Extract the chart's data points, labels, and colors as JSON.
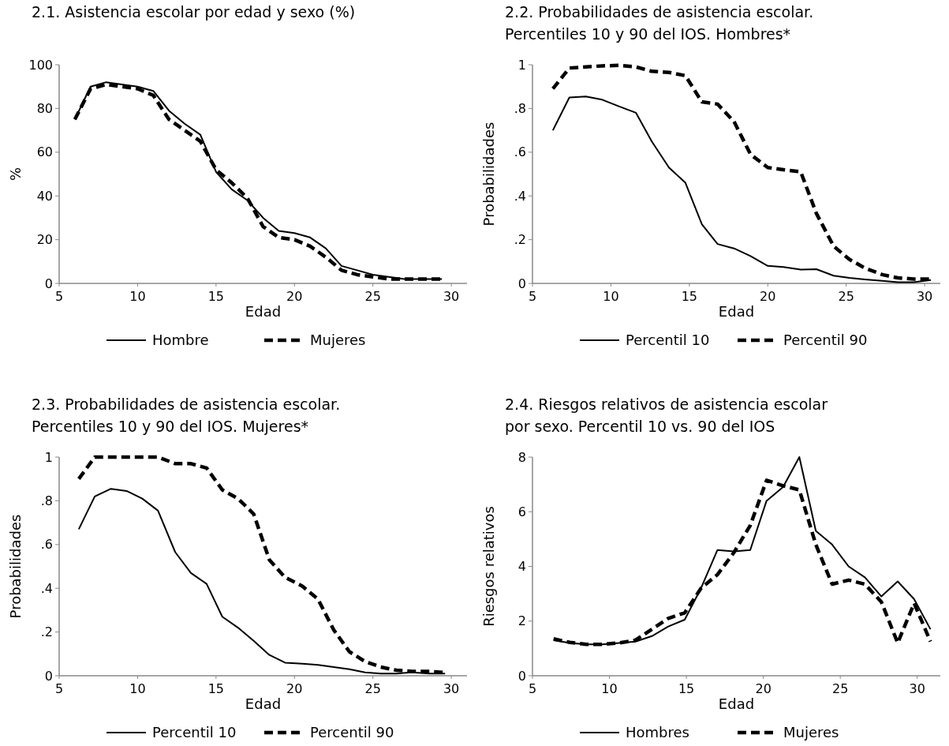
{
  "chart_data": [
    {
      "type": "line",
      "title": "2.1. Asistencia escolar por edad y sexo (%)",
      "xlabel": "Edad",
      "ylabel": "%",
      "x": [
        6,
        7,
        8,
        9,
        10,
        11,
        12,
        13,
        14,
        15,
        16,
        17,
        18,
        19,
        20,
        21,
        22,
        23,
        24,
        25,
        26,
        27,
        28,
        29.4
      ],
      "xlim": [
        5,
        31
      ],
      "xticks": [
        5,
        10,
        15,
        20,
        25,
        30
      ],
      "ylim": [
        0,
        100
      ],
      "yticks": [
        0,
        20,
        40,
        60,
        80,
        100
      ],
      "grid": false,
      "legend": "bottom",
      "series": [
        {
          "name": "Hombre",
          "color": "#000000",
          "line_style": "solid",
          "values": [
            75,
            90,
            92,
            91,
            90,
            88,
            79,
            73,
            68,
            51,
            43,
            38,
            30,
            24,
            23,
            21,
            16,
            8,
            6,
            4,
            3,
            2,
            2,
            2
          ]
        },
        {
          "name": "Mujeres",
          "color": "#000000",
          "line_style": "dashed",
          "values": [
            75,
            89,
            91,
            90,
            89,
            86,
            75,
            70,
            65,
            52,
            46,
            39,
            26,
            21,
            20,
            17,
            12,
            6,
            4,
            3,
            2,
            2,
            2,
            2
          ]
        }
      ]
    },
    {
      "type": "line",
      "title": "2.2. Probabilidades de asistencia escolar. Percentiles 10 y 90 del IOS. Hombres*",
      "xlabel": "Edad",
      "ylabel": "Probabilidades",
      "x": [
        6.3,
        7.35,
        8.4,
        9.45,
        10.5,
        11.6,
        12.6,
        13.7,
        14.75,
        15.8,
        16.8,
        17.85,
        18.9,
        20,
        21,
        22.1,
        23.1,
        24.2,
        25.2,
        26.2,
        27.3,
        28.3,
        29.3,
        30.4
      ],
      "xlim": [
        5,
        31
      ],
      "xticks": [
        5,
        10,
        15,
        20,
        25,
        30
      ],
      "ylim": [
        0,
        1
      ],
      "yticks": [
        0,
        {
          "value": 0.2,
          "label": ".2"
        },
        {
          "value": 0.4,
          "label": ".4"
        },
        {
          "value": 0.6,
          "label": ".6"
        },
        {
          "value": 0.8,
          "label": ".8"
        },
        1
      ],
      "grid": false,
      "legend": "bottom",
      "series": [
        {
          "name": "Percentil 10",
          "color": "#000000",
          "line_style": "solid",
          "values": [
            0.7,
            0.85,
            0.855,
            0.84,
            0.81,
            0.78,
            0.65,
            0.53,
            0.46,
            0.27,
            0.18,
            0.16,
            0.125,
            0.08,
            0.075,
            0.063,
            0.065,
            0.035,
            0.025,
            0.018,
            0.012,
            0.005,
            0.005,
            0.015
          ]
        },
        {
          "name": "Percentil 90",
          "color": "#000000",
          "line_style": "dashed",
          "values": [
            0.89,
            0.985,
            0.99,
            0.995,
            0.997,
            0.99,
            0.97,
            0.965,
            0.95,
            0.83,
            0.82,
            0.74,
            0.59,
            0.53,
            0.52,
            0.51,
            0.32,
            0.17,
            0.11,
            0.07,
            0.04,
            0.025,
            0.02,
            0.02
          ]
        }
      ]
    },
    {
      "type": "line",
      "title": "2.3. Probabilidades de asistencia escolar. Percentiles 10 y 90 del IOS. Mujeres*",
      "xlabel": "Edad",
      "ylabel": "Probabilidades",
      "x": [
        6.25,
        7.27,
        8.3,
        9.3,
        10.3,
        11.3,
        12.4,
        13.4,
        14.4,
        15.4,
        16.4,
        17.4,
        18.4,
        19.4,
        20.5,
        21.5,
        22.5,
        23.5,
        24.5,
        25.5,
        26.5,
        27.5,
        28.6,
        29.6
      ],
      "xlim": [
        5,
        31
      ],
      "xticks": [
        5,
        10,
        15,
        20,
        25,
        30
      ],
      "ylim": [
        0,
        1
      ],
      "yticks": [
        0,
        {
          "value": 0.2,
          "label": ".2"
        },
        {
          "value": 0.4,
          "label": ".4"
        },
        {
          "value": 0.6,
          "label": ".6"
        },
        {
          "value": 0.8,
          "label": ".8"
        },
        1
      ],
      "grid": false,
      "legend": "bottom",
      "series": [
        {
          "name": "Percentil 10",
          "color": "#000000",
          "line_style": "solid",
          "values": [
            0.67,
            0.82,
            0.855,
            0.845,
            0.81,
            0.755,
            0.565,
            0.47,
            0.42,
            0.27,
            0.22,
            0.16,
            0.095,
            0.06,
            0.055,
            0.05,
            0.04,
            0.03,
            0.015,
            0.01,
            0.01,
            0.015,
            0.01,
            0.01
          ]
        },
        {
          "name": "Percentil 90",
          "color": "#000000",
          "line_style": "dashed",
          "values": [
            0.9,
            1,
            1,
            1,
            1,
            1,
            0.97,
            0.97,
            0.95,
            0.85,
            0.81,
            0.74,
            0.53,
            0.45,
            0.41,
            0.35,
            0.21,
            0.11,
            0.065,
            0.04,
            0.025,
            0.02,
            0.02,
            0.015
          ]
        }
      ]
    },
    {
      "type": "line",
      "title": "2.4. Riesgos relativos de asistencia escolar por sexo. Percentil 10 vs. 90 del IOS",
      "xlabel": "Edad",
      "ylabel": "Riesgos relativos",
      "x": [
        6.37,
        7.43,
        8.5,
        9.56,
        10.63,
        11.69,
        12.76,
        13.82,
        14.89,
        15.95,
        17.02,
        18.08,
        19.15,
        20.21,
        21.28,
        22.34,
        23.41,
        24.47,
        25.54,
        26.6,
        27.67,
        28.73,
        29.8,
        30.86
      ],
      "xlim": [
        5,
        31.5
      ],
      "xticks": [
        5,
        10,
        15,
        20,
        25,
        30
      ],
      "ylim": [
        0,
        8
      ],
      "yticks": [
        0,
        2,
        4,
        6,
        8
      ],
      "grid": false,
      "legend": "bottom",
      "series": [
        {
          "name": "Hombres",
          "color": "#000000",
          "line_style": "solid",
          "values": [
            1.3,
            1.2,
            1.15,
            1.15,
            1.2,
            1.25,
            1.45,
            1.8,
            2.05,
            3.2,
            4.6,
            4.55,
            4.6,
            6.4,
            6.9,
            8,
            5.3,
            4.8,
            4,
            3.6,
            2.9,
            3.45,
            2.8,
            1.7
          ]
        },
        {
          "name": "Mujeres",
          "color": "#000000",
          "line_style": "dashed",
          "values": [
            1.35,
            1.22,
            1.15,
            1.15,
            1.2,
            1.3,
            1.7,
            2.1,
            2.3,
            3.2,
            3.7,
            4.5,
            5.5,
            7.15,
            6.95,
            6.8,
            4.8,
            3.35,
            3.5,
            3.35,
            2.7,
            1.2,
            2.65,
            1.25
          ]
        }
      ]
    }
  ]
}
